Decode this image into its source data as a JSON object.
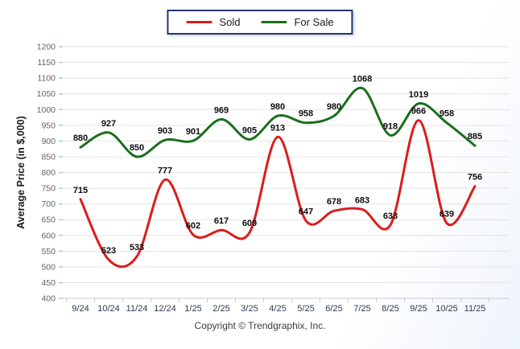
{
  "legend": {
    "items": [
      {
        "label": "Sold",
        "color": "#dd1c1c"
      },
      {
        "label": "For Sale",
        "color": "#1c6e1c"
      }
    ]
  },
  "chart_data": {
    "type": "line",
    "title": "",
    "xlabel": "",
    "ylabel": "Average Price (in $,000)",
    "categories": [
      "9/24",
      "10/24",
      "11/24",
      "12/24",
      "1/25",
      "2/25",
      "3/25",
      "4/25",
      "5/25",
      "6/25",
      "7/25",
      "8/25",
      "9/25",
      "10/25",
      "11/25"
    ],
    "series": [
      {
        "name": "Sold",
        "color": "#dd1c1c",
        "values": [
          715,
          523,
          533,
          777,
          602,
          617,
          609,
          913,
          647,
          678,
          683,
          633,
          966,
          639,
          756
        ]
      },
      {
        "name": "For Sale",
        "color": "#1c6e1c",
        "values": [
          880,
          927,
          850,
          903,
          901,
          969,
          905,
          980,
          958,
          980,
          1068,
          918,
          1019,
          958,
          885
        ]
      }
    ],
    "ylim": [
      400,
      1200
    ],
    "ytick_step": 50,
    "grid": true,
    "legend_position": "top-center",
    "smooth": true
  },
  "footer": {
    "copyright": "Copyright © Trendgraphix, Inc."
  }
}
